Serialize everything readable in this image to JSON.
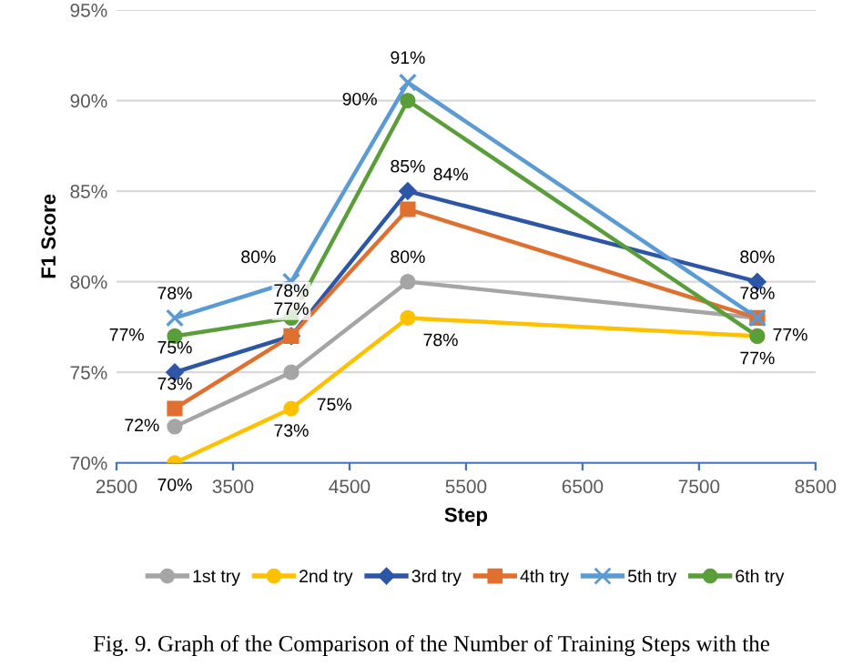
{
  "chart_data": {
    "type": "line",
    "xlabel": "Step",
    "ylabel": "F1 Score",
    "x": [
      3000,
      4000,
      5000,
      8000
    ],
    "xlim": [
      2500,
      8500
    ],
    "xticks": [
      2500,
      3500,
      4500,
      5500,
      6500,
      7500,
      8500
    ],
    "ylim": [
      70,
      95
    ],
    "yticks": [
      {
        "value": 70,
        "label": "70%"
      },
      {
        "value": 75,
        "label": "75%"
      },
      {
        "value": 80,
        "label": "80%"
      },
      {
        "value": 85,
        "label": "85%"
      },
      {
        "value": 90,
        "label": "90%"
      },
      {
        "value": 95,
        "label": "95%"
      }
    ],
    "grid": "y",
    "legend": "bottom",
    "series": [
      {
        "name": "1st try",
        "color": "#a5a5a5",
        "marker": "circle",
        "values": [
          72,
          75,
          80,
          78
        ],
        "value_labels": [
          "72%",
          "75%",
          "80%",
          null
        ]
      },
      {
        "name": "2nd try",
        "color": "#ffc000",
        "marker": "circle",
        "values": [
          70,
          73,
          78,
          77
        ],
        "value_labels": [
          "70%",
          "73%",
          "78%",
          "77%"
        ]
      },
      {
        "name": "3rd try",
        "color": "#2e56a6",
        "marker": "diamond",
        "values": [
          75,
          77,
          85,
          80
        ],
        "value_labels": [
          "75%",
          null,
          "85%",
          "80%"
        ]
      },
      {
        "name": "4th try",
        "color": "#e07030",
        "marker": "square",
        "values": [
          73,
          77,
          84,
          78
        ],
        "value_labels": [
          "73%",
          "77%",
          "84%",
          "78%"
        ]
      },
      {
        "name": "5th try",
        "color": "#5b9bd5",
        "marker": "cross",
        "values": [
          78,
          80,
          91,
          78
        ],
        "value_labels": [
          "78%",
          "80%",
          "91%",
          null
        ]
      },
      {
        "name": "6th try",
        "color": "#5a9e3a",
        "marker": "circle",
        "values": [
          77,
          78,
          90,
          77
        ],
        "value_labels": [
          "77%",
          "78%",
          "90%",
          "77%"
        ]
      }
    ],
    "annotations": [
      "Fig. 9. Graph of the Comparison of the Number of Training Steps with the"
    ]
  }
}
